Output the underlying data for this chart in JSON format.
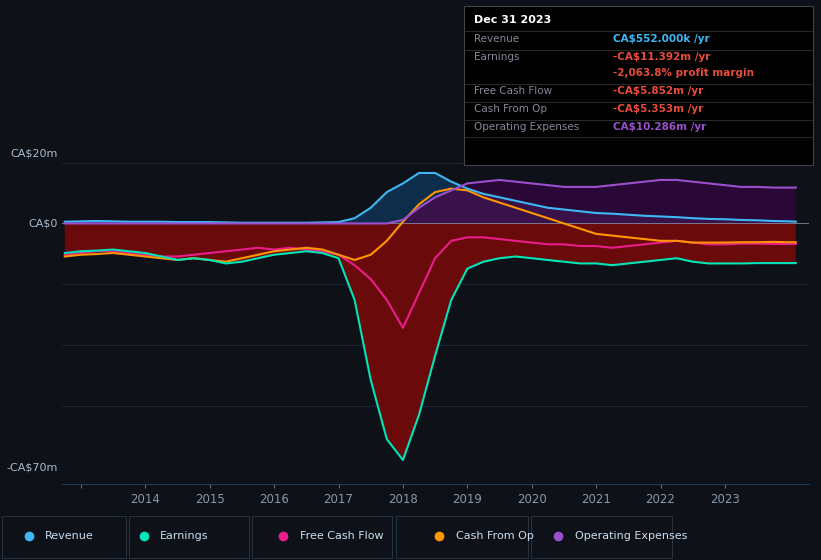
{
  "bg_color": "#0e1117",
  "plot_bg_color": "#0e1117",
  "grid_color": "#1c2a3a",
  "zero_line_color": "#8899aa",
  "ylabel_top": "CA$20m",
  "ylabel_bottom": "-CA$70m",
  "ylabel_zero": "CA$0",
  "ylim": [
    -75,
    28
  ],
  "xlim": [
    2012.7,
    2024.3
  ],
  "revenue_color": "#3db8f5",
  "earnings_color": "#00e5b8",
  "fcf_color": "#e91e8c",
  "cashfromop_color": "#ff9500",
  "opex_color": "#9b4fcc",
  "fill_revenue_color": "#0a2a45",
  "fill_earnings_neg_color": "#6b0a0a",
  "fill_opex_color": "#3a0a50",
  "tooltip_bg": "#000000",
  "tooltip_border": "#333333",
  "legend_bg": "#111827",
  "legend_border": "#2a3a4a",
  "years": [
    2012.75,
    2013.0,
    2013.25,
    2013.5,
    2013.75,
    2014.0,
    2014.25,
    2014.5,
    2014.75,
    2015.0,
    2015.25,
    2015.5,
    2015.75,
    2016.0,
    2016.25,
    2016.5,
    2016.75,
    2017.0,
    2017.25,
    2017.5,
    2017.75,
    2018.0,
    2018.25,
    2018.5,
    2018.75,
    2019.0,
    2019.25,
    2019.5,
    2019.75,
    2020.0,
    2020.25,
    2020.5,
    2020.75,
    2021.0,
    2021.25,
    2021.5,
    2021.75,
    2022.0,
    2022.25,
    2022.5,
    2022.75,
    2023.0,
    2023.25,
    2023.5,
    2023.75,
    2024.0,
    2024.1
  ],
  "revenue": [
    0.5,
    0.6,
    0.7,
    0.6,
    0.5,
    0.5,
    0.5,
    0.4,
    0.4,
    0.4,
    0.3,
    0.2,
    0.2,
    0.2,
    0.2,
    0.2,
    0.3,
    0.4,
    1.5,
    4.5,
    9.0,
    11.5,
    14.5,
    14.5,
    12.0,
    10.0,
    8.5,
    7.5,
    6.5,
    5.5,
    4.5,
    4.0,
    3.5,
    3.0,
    2.8,
    2.5,
    2.2,
    2.0,
    1.8,
    1.5,
    1.3,
    1.2,
    1.0,
    0.9,
    0.7,
    0.6,
    0.5
  ],
  "earnings": [
    -8.5,
    -8.0,
    -7.8,
    -7.5,
    -8.0,
    -8.5,
    -9.5,
    -10.5,
    -10.0,
    -10.5,
    -11.5,
    -11.0,
    -10.0,
    -9.0,
    -8.5,
    -8.0,
    -8.5,
    -10.0,
    -22.0,
    -45.0,
    -62.0,
    -68.0,
    -55.0,
    -38.0,
    -22.0,
    -13.0,
    -11.0,
    -10.0,
    -9.5,
    -10.0,
    -10.5,
    -11.0,
    -11.5,
    -11.5,
    -12.0,
    -11.5,
    -11.0,
    -10.5,
    -10.0,
    -11.0,
    -11.5,
    -11.5,
    -11.5,
    -11.4,
    -11.4,
    -11.4,
    -11.4
  ],
  "fcf": [
    -9.0,
    -8.5,
    -8.0,
    -8.0,
    -8.5,
    -9.0,
    -9.5,
    -9.5,
    -9.0,
    -8.5,
    -8.0,
    -7.5,
    -7.0,
    -7.5,
    -7.0,
    -7.5,
    -8.0,
    -9.0,
    -12.0,
    -16.0,
    -22.0,
    -30.0,
    -20.0,
    -10.0,
    -5.0,
    -4.0,
    -4.0,
    -4.5,
    -5.0,
    -5.5,
    -6.0,
    -6.0,
    -6.5,
    -6.5,
    -7.0,
    -6.5,
    -6.0,
    -5.5,
    -5.0,
    -5.5,
    -6.0,
    -6.0,
    -5.8,
    -5.8,
    -5.9,
    -5.9,
    -5.9
  ],
  "cashfromop": [
    -9.5,
    -9.0,
    -8.8,
    -8.5,
    -9.0,
    -9.5,
    -10.0,
    -10.5,
    -10.0,
    -10.5,
    -11.0,
    -10.0,
    -9.0,
    -8.0,
    -7.5,
    -7.0,
    -7.5,
    -9.0,
    -10.5,
    -9.0,
    -5.0,
    0.5,
    5.5,
    9.0,
    10.0,
    9.5,
    7.5,
    6.0,
    4.5,
    3.0,
    1.5,
    0.0,
    -1.5,
    -3.0,
    -3.5,
    -4.0,
    -4.5,
    -5.0,
    -5.0,
    -5.5,
    -5.5,
    -5.5,
    -5.4,
    -5.4,
    -5.3,
    -5.4,
    -5.4
  ],
  "opex": [
    0.0,
    0.0,
    0.0,
    0.0,
    0.0,
    0.0,
    0.0,
    0.0,
    0.0,
    0.0,
    0.0,
    0.0,
    0.0,
    0.0,
    0.0,
    0.0,
    0.0,
    0.0,
    0.0,
    0.0,
    0.0,
    1.0,
    4.5,
    7.5,
    9.5,
    11.5,
    12.0,
    12.5,
    12.0,
    11.5,
    11.0,
    10.5,
    10.5,
    10.5,
    11.0,
    11.5,
    12.0,
    12.5,
    12.5,
    12.0,
    11.5,
    11.0,
    10.5,
    10.5,
    10.3,
    10.3,
    10.3
  ],
  "tooltip": {
    "date": "Dec 31 2023",
    "revenue_label": "Revenue",
    "revenue_value": "CA$552.000k",
    "revenue_color": "#3db8f5",
    "earnings_label": "Earnings",
    "earnings_value": "-CA$11.392m",
    "earnings_color": "#e74c3c",
    "margin_value": "-2,063.8%",
    "margin_color": "#e74c3c",
    "fcf_label": "Free Cash Flow",
    "fcf_value": "-CA$5.852m",
    "fcf_color": "#e74c3c",
    "cashfromop_label": "Cash From Op",
    "cashfromop_value": "-CA$5.353m",
    "cashfromop_color": "#e74c3c",
    "opex_label": "Operating Expenses",
    "opex_value": "CA$10.286m",
    "opex_color": "#9b4fcc"
  },
  "legend": [
    {
      "label": "Revenue",
      "color": "#3db8f5"
    },
    {
      "label": "Earnings",
      "color": "#00e5b8"
    },
    {
      "label": "Free Cash Flow",
      "color": "#e91e8c"
    },
    {
      "label": "Cash From Op",
      "color": "#ff9500"
    },
    {
      "label": "Operating Expenses",
      "color": "#9b4fcc"
    }
  ]
}
